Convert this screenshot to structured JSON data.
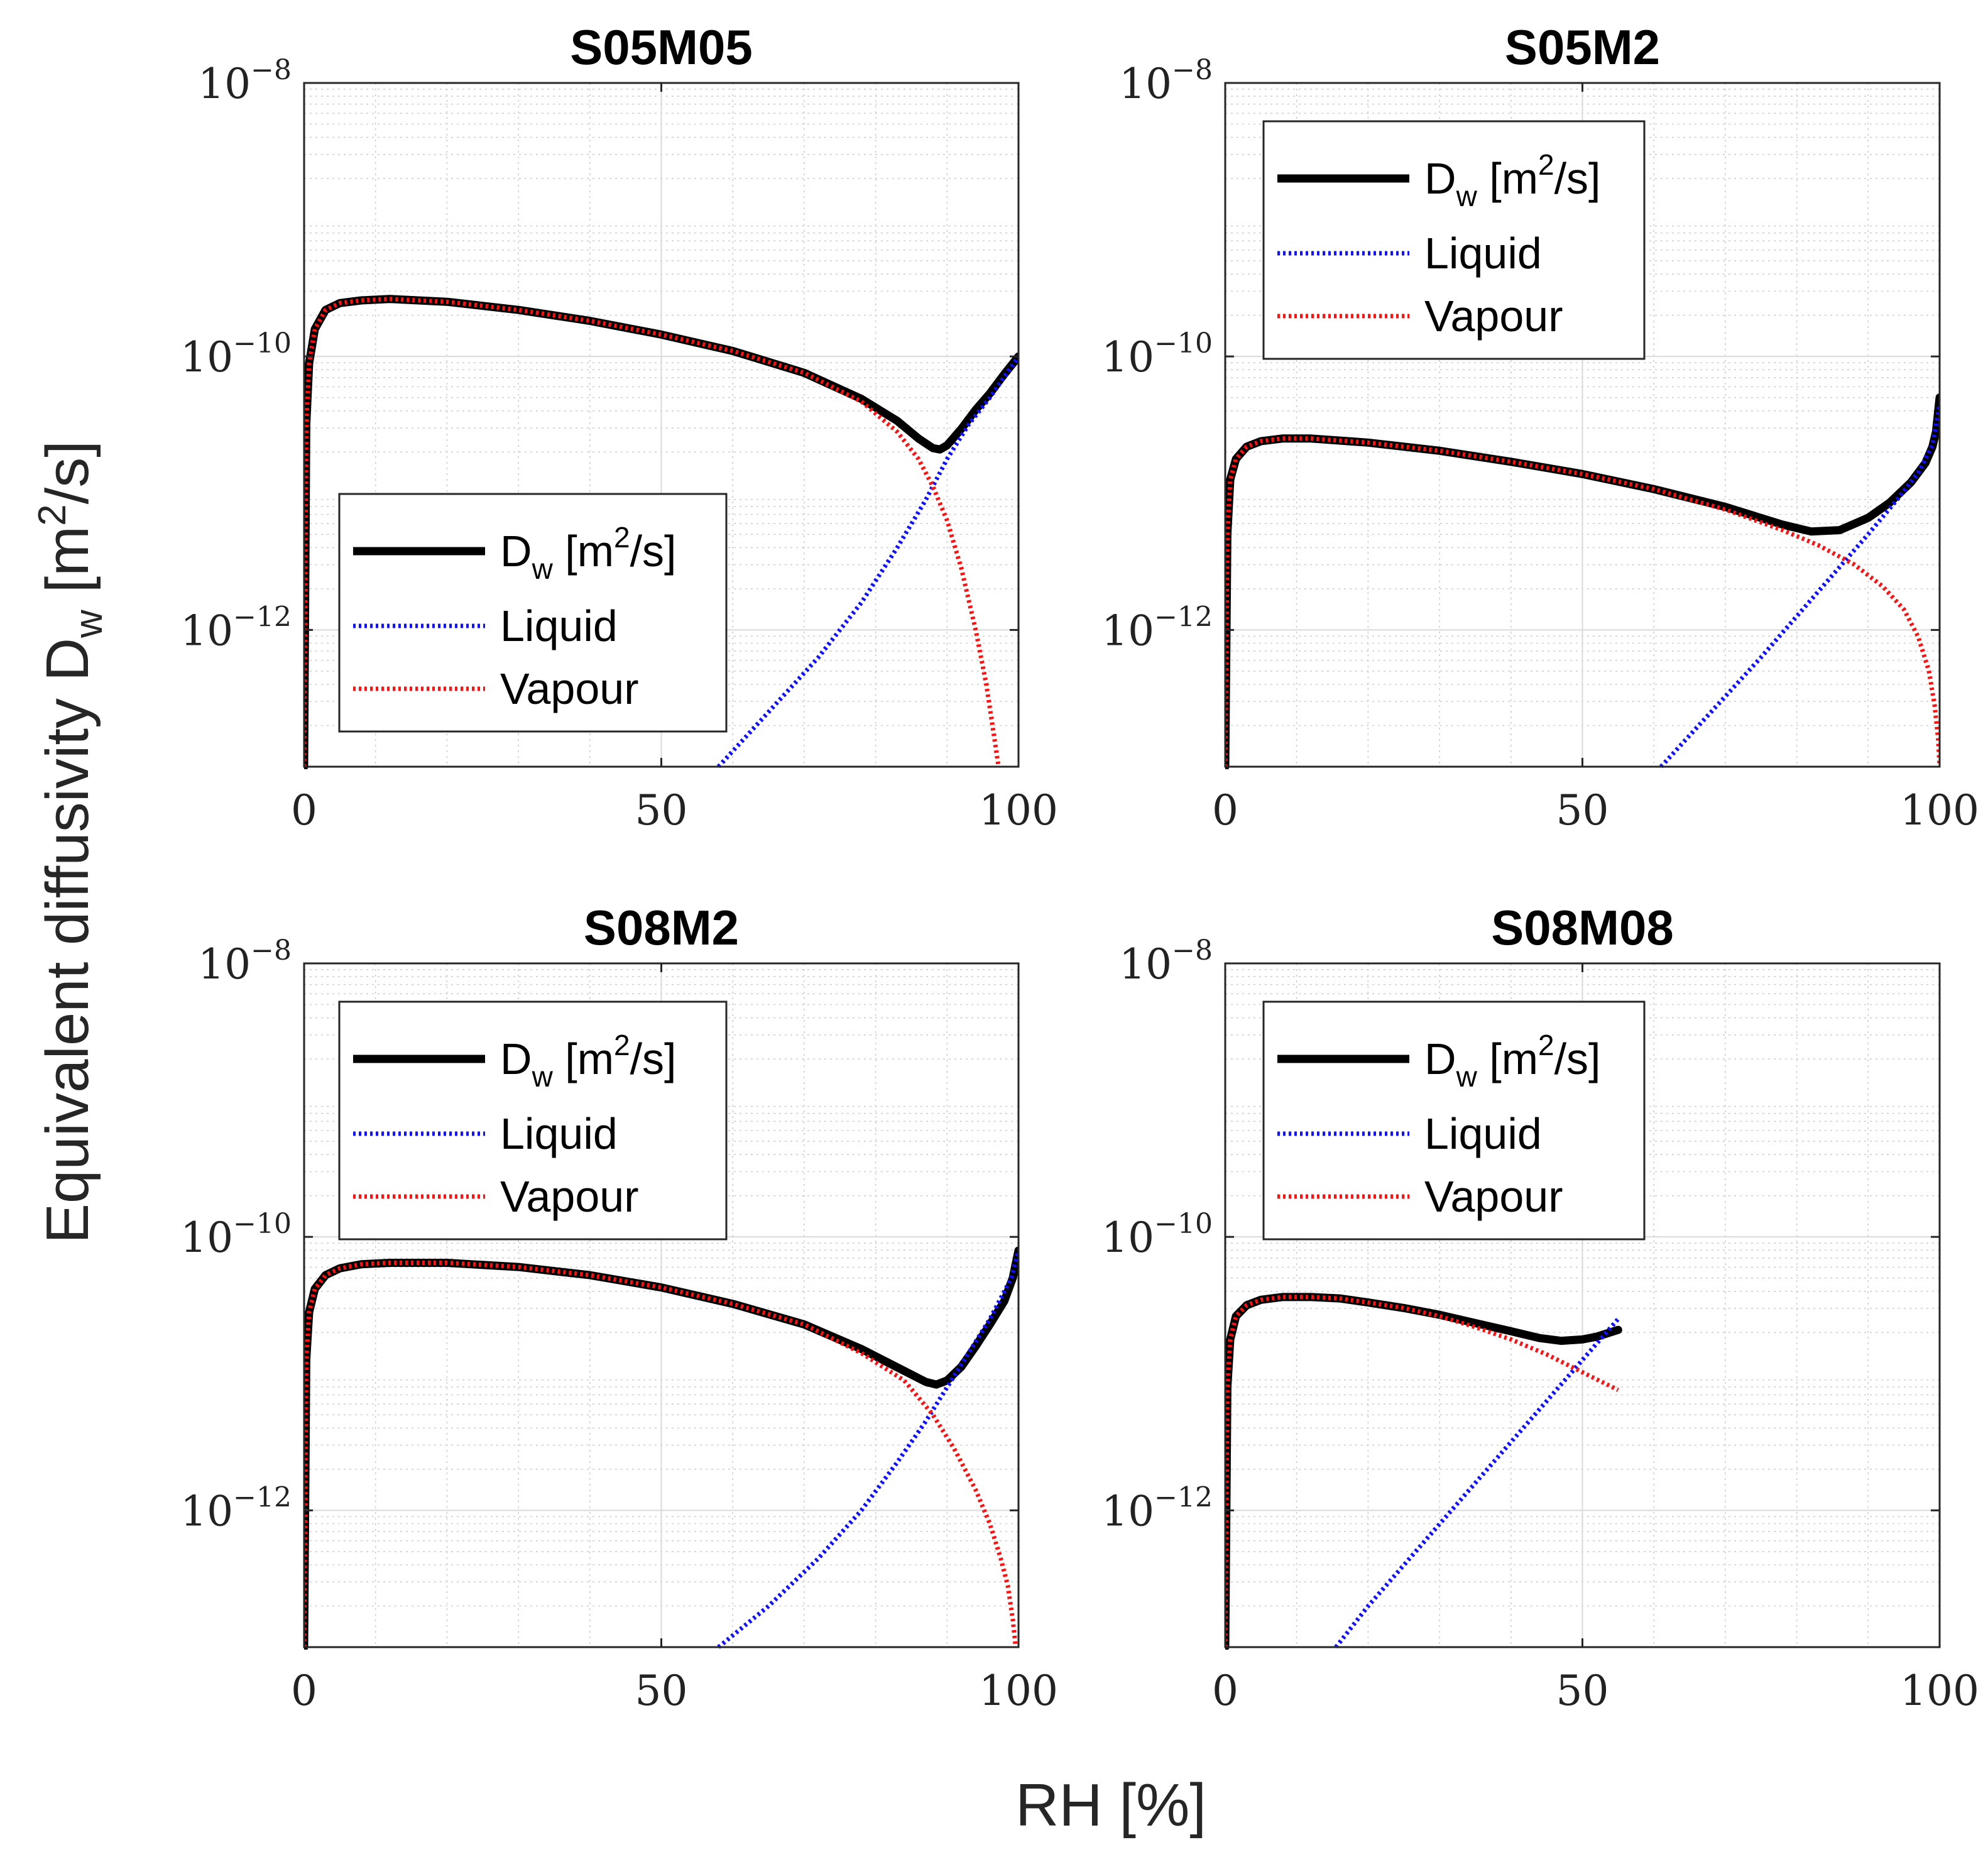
{
  "figure": {
    "ylabel_main": "Equivalent diffusivity D",
    "ylabel_sub": "w",
    "ylabel_tail_open": " [m",
    "ylabel_sup": "2",
    "ylabel_tail_close": "/s]",
    "xlabel": "RH [%]"
  },
  "colors": {
    "total": "#000000",
    "liquid": "#1010ff",
    "vapour": "#ff1010"
  },
  "chart_data": [
    {
      "type": "line",
      "title": "S05M05",
      "y_scale": "log",
      "xlim": [
        0,
        100
      ],
      "ylim_log10": [
        -13,
        -8
      ],
      "x_ticks": [
        0,
        50,
        100
      ],
      "x_tick_labels": [
        "0",
        "50",
        "100"
      ],
      "y_ticks_log10": [
        -12,
        -10,
        -8
      ],
      "y_tick_base": "10",
      "y_tick_exps": [
        "−12",
        "−10",
        "−8"
      ],
      "legend": {
        "position": "lower-left",
        "entries": [
          {
            "label": "D",
            "sub": "w",
            "tail_open": " [m",
            "sup": "2",
            "tail_close": "/s]"
          },
          {
            "label": "Liquid"
          },
          {
            "label": "Vapour"
          }
        ]
      },
      "series": [
        {
          "name": "D_w [m2/s]",
          "style": "solid",
          "x": [
            0,
            0.3,
            0.7,
            1.5,
            3,
            5,
            8,
            12,
            20,
            30,
            40,
            50,
            60,
            70,
            78,
            83,
            86,
            88,
            89,
            90,
            92,
            94,
            96,
            98,
            100
          ],
          "y": [
            -13,
            -10.5,
            -10.05,
            -9.8,
            -9.66,
            -9.61,
            -9.59,
            -9.58,
            -9.6,
            -9.66,
            -9.74,
            -9.84,
            -9.96,
            -10.12,
            -10.31,
            -10.47,
            -10.6,
            -10.67,
            -10.68,
            -10.65,
            -10.53,
            -10.39,
            -10.27,
            -10.13,
            -10.0
          ]
        },
        {
          "name": "Liquid",
          "style": "dotted",
          "x": [
            58,
            65,
            72,
            78,
            83,
            87,
            90,
            93,
            96,
            100
          ],
          "y": [
            -13,
            -12.6,
            -12.2,
            -11.8,
            -11.4,
            -11.05,
            -10.75,
            -10.5,
            -10.3,
            -10.0
          ]
        },
        {
          "name": "Vapour",
          "style": "dotted",
          "x": [
            0,
            0.3,
            0.7,
            1.5,
            3,
            5,
            8,
            12,
            20,
            30,
            40,
            50,
            60,
            70,
            78,
            83,
            86,
            88,
            90,
            92,
            94,
            95.5,
            96.5,
            97.2
          ],
          "y": [
            -13,
            -10.5,
            -10.05,
            -9.8,
            -9.66,
            -9.61,
            -9.59,
            -9.58,
            -9.6,
            -9.66,
            -9.74,
            -9.84,
            -9.96,
            -10.12,
            -10.33,
            -10.55,
            -10.75,
            -10.95,
            -11.2,
            -11.55,
            -12.0,
            -12.4,
            -12.75,
            -13
          ]
        }
      ]
    },
    {
      "type": "line",
      "title": "S05M2",
      "y_scale": "log",
      "xlim": [
        0,
        100
      ],
      "ylim_log10": [
        -13,
        -8
      ],
      "x_ticks": [
        0,
        50,
        100
      ],
      "x_tick_labels": [
        "0",
        "50",
        "100"
      ],
      "y_ticks_log10": [
        -12,
        -10,
        -8
      ],
      "y_tick_base": "10",
      "y_tick_exps": [
        "−12",
        "−10",
        "−8"
      ],
      "legend": {
        "position": "upper-left",
        "entries": [
          {
            "label": "D",
            "sub": "w",
            "tail_open": " [m",
            "sup": "2",
            "tail_close": "/s]"
          },
          {
            "label": "Liquid"
          },
          {
            "label": "Vapour"
          }
        ]
      },
      "series": [
        {
          "name": "D_w [m2/s]",
          "style": "solid",
          "x": [
            0,
            0.3,
            0.7,
            1.5,
            3,
            5,
            8,
            12,
            20,
            30,
            40,
            50,
            60,
            70,
            78,
            82,
            86,
            90,
            93,
            96,
            98,
            99,
            99.5,
            100
          ],
          "y": [
            -13,
            -11.3,
            -10.9,
            -10.75,
            -10.66,
            -10.62,
            -10.6,
            -10.6,
            -10.63,
            -10.69,
            -10.77,
            -10.86,
            -10.97,
            -11.1,
            -11.23,
            -11.28,
            -11.27,
            -11.18,
            -11.07,
            -10.92,
            -10.78,
            -10.66,
            -10.55,
            -10.3
          ]
        },
        {
          "name": "Liquid",
          "style": "dotted",
          "x": [
            61,
            68,
            75,
            80,
            85,
            90,
            94,
            97,
            99,
            100
          ],
          "y": [
            -13,
            -12.6,
            -12.2,
            -11.9,
            -11.6,
            -11.3,
            -11.05,
            -10.85,
            -10.65,
            -10.35
          ]
        },
        {
          "name": "Vapour",
          "style": "dotted",
          "x": [
            0,
            0.3,
            0.7,
            1.5,
            3,
            5,
            8,
            12,
            20,
            30,
            40,
            50,
            60,
            70,
            78,
            83,
            88,
            92,
            95,
            97,
            98.5,
            99.3,
            99.8,
            100
          ],
          "y": [
            -13,
            -11.3,
            -10.9,
            -10.75,
            -10.66,
            -10.62,
            -10.6,
            -10.6,
            -10.63,
            -10.69,
            -10.77,
            -10.86,
            -10.97,
            -11.12,
            -11.27,
            -11.38,
            -11.52,
            -11.68,
            -11.85,
            -12.05,
            -12.3,
            -12.55,
            -12.8,
            -13
          ]
        }
      ]
    },
    {
      "type": "line",
      "title": "S08M2",
      "y_scale": "log",
      "xlim": [
        0,
        100
      ],
      "ylim_log10": [
        -13,
        -8
      ],
      "x_ticks": [
        0,
        50,
        100
      ],
      "x_tick_labels": [
        "0",
        "50",
        "100"
      ],
      "y_ticks_log10": [
        -12,
        -10,
        -8
      ],
      "y_tick_base": "10",
      "y_tick_exps": [
        "−12",
        "−10",
        "−8"
      ],
      "legend": {
        "position": "upper-left",
        "entries": [
          {
            "label": "D",
            "sub": "w",
            "tail_open": " [m",
            "sup": "2",
            "tail_close": "/s]"
          },
          {
            "label": "Liquid"
          },
          {
            "label": "Vapour"
          }
        ]
      },
      "series": [
        {
          "name": "D_w [m2/s]",
          "style": "solid",
          "x": [
            0,
            0.3,
            0.7,
            1.5,
            3,
            5,
            8,
            12,
            20,
            30,
            40,
            50,
            60,
            70,
            78,
            84,
            87,
            88.5,
            90,
            92,
            94,
            96,
            98,
            99.2,
            100
          ],
          "y": [
            -13,
            -10.9,
            -10.55,
            -10.38,
            -10.28,
            -10.23,
            -10.2,
            -10.19,
            -10.19,
            -10.22,
            -10.28,
            -10.37,
            -10.49,
            -10.64,
            -10.82,
            -10.98,
            -11.06,
            -11.08,
            -11.05,
            -10.95,
            -10.8,
            -10.64,
            -10.47,
            -10.3,
            -10.1
          ]
        },
        {
          "name": "Liquid",
          "style": "dotted",
          "x": [
            58,
            65,
            72,
            78,
            83,
            87,
            90,
            93,
            96,
            99,
            100
          ],
          "y": [
            -13,
            -12.7,
            -12.35,
            -12.0,
            -11.65,
            -11.35,
            -11.1,
            -10.85,
            -10.6,
            -10.3,
            -10.1
          ]
        },
        {
          "name": "Vapour",
          "style": "dotted",
          "x": [
            0,
            0.3,
            0.7,
            1.5,
            3,
            5,
            8,
            12,
            20,
            30,
            40,
            50,
            60,
            70,
            78,
            84,
            88,
            91,
            94,
            96,
            97.5,
            98.5,
            99.2,
            99.6
          ],
          "y": [
            -13,
            -10.9,
            -10.55,
            -10.38,
            -10.28,
            -10.23,
            -10.2,
            -10.19,
            -10.19,
            -10.22,
            -10.28,
            -10.37,
            -10.49,
            -10.64,
            -10.85,
            -11.05,
            -11.3,
            -11.55,
            -11.85,
            -12.1,
            -12.35,
            -12.55,
            -12.8,
            -13
          ]
        }
      ]
    },
    {
      "type": "line",
      "title": "S08M08",
      "y_scale": "log",
      "xlim": [
        0,
        100
      ],
      "ylim_log10": [
        -13,
        -8
      ],
      "x_ticks": [
        0,
        50,
        100
      ],
      "x_tick_labels": [
        "0",
        "50",
        "100"
      ],
      "y_ticks_log10": [
        -12,
        -10,
        -8
      ],
      "y_tick_base": "10",
      "y_tick_exps": [
        "−12",
        "−10",
        "−8"
      ],
      "legend": {
        "position": "upper-left",
        "entries": [
          {
            "label": "D",
            "sub": "w",
            "tail_open": " [m",
            "sup": "2",
            "tail_close": "/s]"
          },
          {
            "label": "Liquid"
          },
          {
            "label": "Vapour"
          }
        ]
      },
      "series": [
        {
          "name": "D_w [m2/s]",
          "style": "solid",
          "x": [
            0,
            0.3,
            0.7,
            1.5,
            3,
            5,
            8,
            12,
            16,
            20,
            25,
            30,
            35,
            40,
            44,
            47,
            50,
            52,
            55
          ],
          "y": [
            -13,
            -11.1,
            -10.75,
            -10.58,
            -10.5,
            -10.46,
            -10.44,
            -10.44,
            -10.45,
            -10.48,
            -10.52,
            -10.57,
            -10.63,
            -10.69,
            -10.74,
            -10.76,
            -10.75,
            -10.73,
            -10.68
          ]
        },
        {
          "name": "Liquid",
          "style": "dotted",
          "x": [
            15.5,
            20,
            25,
            30,
            35,
            40,
            45,
            50,
            55
          ],
          "y": [
            -13,
            -12.7,
            -12.4,
            -12.1,
            -11.8,
            -11.5,
            -11.2,
            -10.9,
            -10.6
          ]
        },
        {
          "name": "Vapour",
          "style": "dotted",
          "x": [
            0,
            0.3,
            0.7,
            1.5,
            3,
            5,
            8,
            12,
            16,
            20,
            25,
            30,
            35,
            40,
            45,
            50,
            55
          ],
          "y": [
            -13,
            -11.1,
            -10.75,
            -10.58,
            -10.5,
            -10.46,
            -10.44,
            -10.44,
            -10.45,
            -10.48,
            -10.52,
            -10.58,
            -10.66,
            -10.75,
            -10.86,
            -10.99,
            -11.12
          ]
        }
      ]
    }
  ]
}
